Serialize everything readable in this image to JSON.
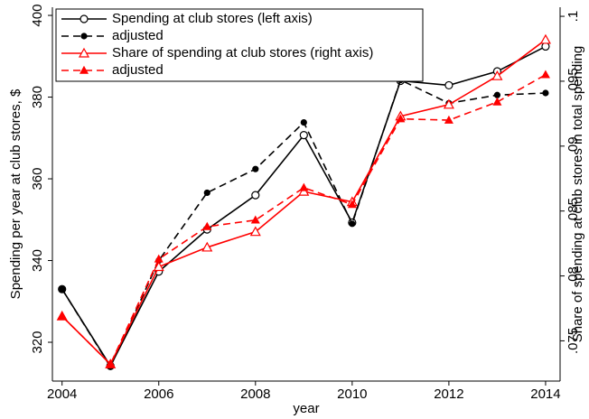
{
  "chart_data": {
    "type": "line",
    "xlabel": "year",
    "ylabel": "Spending per year at club stores, $",
    "y2label": "Share of spending at club stores in total spending",
    "x": [
      2004,
      2005,
      2006,
      2007,
      2008,
      2009,
      2010,
      2011,
      2012,
      2013,
      2014
    ],
    "xlim": [
      2003.8,
      2014.3
    ],
    "xticks": [
      2004,
      2006,
      2008,
      2010,
      2012,
      2014
    ],
    "ylim": [
      310.5,
      402
    ],
    "yticks": [
      320,
      340,
      360,
      380,
      400
    ],
    "y2lim": [
      0.0719,
      0.1007
    ],
    "y2ticks": [
      {
        "value": 0.075,
        "label": ".075"
      },
      {
        "value": 0.08,
        "label": ".08"
      },
      {
        "value": 0.085,
        "label": ".085"
      },
      {
        "value": 0.09,
        "label": ".09"
      },
      {
        "value": 0.095,
        "label": ".095"
      },
      {
        "value": 0.1,
        "label": ".1"
      }
    ],
    "legend": "top-left",
    "series": [
      {
        "name": "Spending at club stores (left axis)",
        "color": "#000000",
        "dash": "solid",
        "marker": "circle-open",
        "axis": "y",
        "values": [
          333,
          314.2,
          337.3,
          347.6,
          356,
          370.7,
          349.3,
          384,
          382.9,
          386.3,
          392.4
        ]
      },
      {
        "name": "adjusted",
        "color": "#000000",
        "dash": "dashed",
        "marker": "circle",
        "axis": "y",
        "values": [
          333,
          314,
          340,
          356.6,
          362.4,
          373.8,
          349,
          384.2,
          378.5,
          380.5,
          381
        ]
      },
      {
        "name": "Share of spending at club stores (right axis)",
        "color": "#ff0000",
        "dash": "solid",
        "marker": "triangle-open",
        "axis": "y2",
        "values": [
          0.0769,
          0.0732,
          0.0807,
          0.0822,
          0.0834,
          0.0865,
          0.0857,
          0.0923,
          0.0932,
          0.0954,
          0.0982
        ]
      },
      {
        "name": "adjusted",
        "color": "#ff0000",
        "dash": "dashed",
        "marker": "triangle",
        "axis": "y2",
        "values": [
          0.0769,
          0.0732,
          0.0813,
          0.0838,
          0.0843,
          0.0868,
          0.0855,
          0.0921,
          0.092,
          0.0934,
          0.0955
        ]
      }
    ]
  }
}
